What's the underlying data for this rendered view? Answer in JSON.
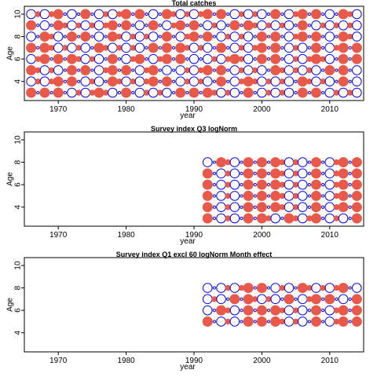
{
  "chart_data": [
    {
      "type": "scatter",
      "title": "Total catches",
      "xlabel": "year",
      "ylabel": "Age",
      "xlim": [
        1965,
        2015
      ],
      "ylim": [
        2.3,
        10.7
      ],
      "xticks": [
        1970,
        1980,
        1990,
        2000,
        2010
      ],
      "yticks": [
        4,
        6,
        8,
        10
      ],
      "years": [
        1966,
        2014
      ],
      "ages": [
        3,
        10
      ],
      "pattern": [
        "NpNpNpPnPnNnPpNpPnPnPpNpNpNnPnPpNpPnPnPpNpNpPnPnPp",
        "PnPnNpNpPnPpNnPnPnNpNpPnPnPpNpPnNnPnPnPpNnPnPpNpPn",
        "NnPnPpNpNpPnNpNpPnNpPpPnPnNpNpPnPnPpNnPnPnPpNpNpPn",
        "PnNpNpNnPnPpNpPnNpPnNpNpPpPnPnNnPpNpNpPnPnNnPpNpNp",
        "NpNnPnPnPpNnPnPnPpNpNpNnPnPpNpPnPnNpNpPnPpNpPnNpNp",
        "PpNnPpNpNpPpNnPnPnPpNpPnNpNpPnPnPpNpNpPnNpNpPpNnPn",
        "NpPpNnPnPnPnNpNpPpNpPnNpNpPnPpNpNnPnPnPpNpPnPnPnPp",
        "PnPnNpPpNpPnPnNpNpPpNnPnPnNpNpPnPnPpNpPnNpNpPpNnPn"
      ]
    },
    {
      "type": "scatter",
      "title": "Survey index Q3 logNorm",
      "xlabel": "year",
      "ylabel": "Age",
      "xlim": [
        1965,
        2015
      ],
      "ylim": [
        2.3,
        10.7
      ],
      "xticks": [
        1970,
        1980,
        1990,
        2000,
        2010
      ],
      "yticks": [
        4,
        6,
        8,
        10
      ],
      "years": [
        1992,
        2014
      ],
      "ages": [
        3,
        8
      ],
      "pattern": [
        "NpPnPpNpNnPpNnPnNpPnPpNpNnPpNpPnPpNnPnNpPn",
        "NpPnPpNpNpNnPnPpNpPnNpNpPpNnPnPnNpPnNpNpPn",
        "NpPnPpNpNpNnPnPpNpPnNpNpPpNnPnPnNpPnNpNpPn",
        "NpPnPpNpNpNnPnPpNpPnNpNpPpNnPnPnNpPnNpNpPn",
        "NpPnPpNpNpNnPnPpNpPnNpNpPpNnPnPnNpPnNpNpPn",
        "PpNnPpNpNpNnPnPpNpPnNpNpPpNnPnPnNpPnNpNpPn"
      ]
    },
    {
      "type": "scatter",
      "title": "Survey index Q1 excl 60 logNorm Month effect",
      "xlabel": "year",
      "ylabel": "Age",
      "xlim": [
        1965,
        2015
      ],
      "ylim": [
        2.3,
        10.7
      ],
      "xticks": [
        1970,
        1980,
        1990,
        2000,
        2010
      ],
      "yticks": [
        4,
        6,
        8,
        10
      ],
      "years": [
        1992,
        2014
      ],
      "ages": [
        5,
        8
      ],
      "pattern": [
        "NpPnPpNpNpNnPnPpNpPnNpNpPpNnPnPnNpPnNpNpPp",
        "PpNnPpNpNpNnPnPpNpPnNpNpPpNnPnPnNpPnNpNpPn",
        "PnPpNpNnPnPpNpPnNpNpPpNnPnPnNpPnNpNpPpPnPp",
        "PpPnPnNpNpPnPpNnPnPnNpPnNpNpPpNnPnPnPpPnPp"
      ]
    }
  ]
}
